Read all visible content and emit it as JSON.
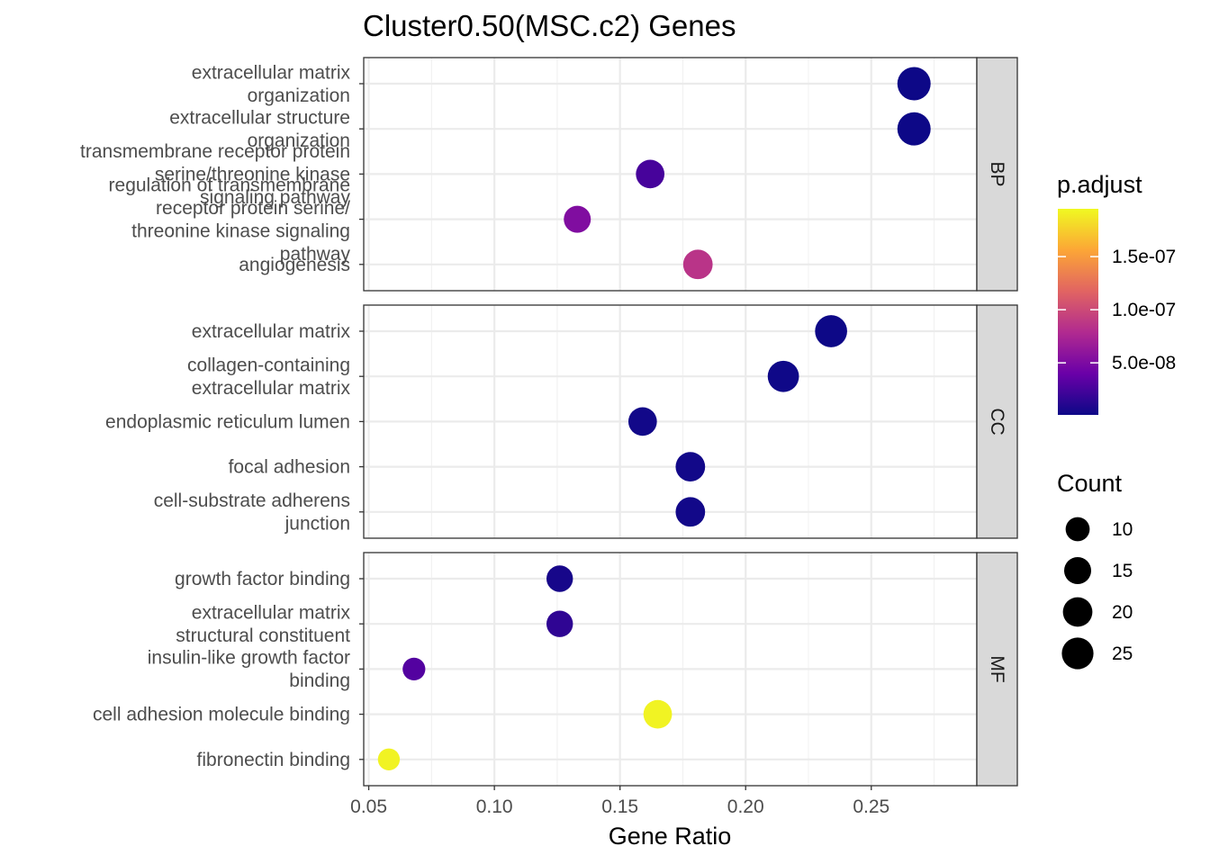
{
  "chart_data": {
    "type": "scatter",
    "title": "Cluster0.50(MSC.c2) Genes",
    "xlabel": "Gene Ratio",
    "xlim": [
      0.048,
      0.292
    ],
    "x_ticks": [
      0.05,
      0.1,
      0.15,
      0.2,
      0.25
    ],
    "x_tick_labels": [
      "0.05",
      "0.10",
      "0.15",
      "0.20",
      "0.25"
    ],
    "grid": true,
    "legend_position": "right",
    "color_legend": {
      "title": "p.adjust",
      "min": 1e-09,
      "max": 1.95e-07,
      "ticks": [
        5e-08,
        1e-07,
        1.5e-07
      ],
      "tick_labels": [
        "5.0e-08",
        "1.0e-07",
        "1.5e-07"
      ],
      "colors": [
        "#0d0887",
        "#6a00a8",
        "#b12a90",
        "#e16462",
        "#fca636",
        "#f0f921"
      ]
    },
    "size_legend": {
      "title": "Count",
      "values": [
        10,
        15,
        20,
        25
      ],
      "labels": [
        "10",
        "15",
        "20",
        "25"
      ]
    },
    "panels": [
      {
        "name": "BP",
        "terms": [
          {
            "label": [
              "extracellular matrix",
              "organization"
            ],
            "x": 0.267,
            "count": 29,
            "p_adjust": 1e-09
          },
          {
            "label": [
              "extracellular structure",
              "organization"
            ],
            "x": 0.267,
            "count": 29,
            "p_adjust": 1e-09
          },
          {
            "label": [
              "transmembrane receptor protein",
              "serine/threonine kinase",
              "signaling pathway"
            ],
            "x": 0.162,
            "count": 18,
            "p_adjust": 2.5e-08
          },
          {
            "label": [
              "regulation of transmembrane",
              "receptor protein serine/",
              "threonine kinase signaling",
              "pathway"
            ],
            "x": 0.133,
            "count": 15,
            "p_adjust": 5.2e-08
          },
          {
            "label": [
              "angiogenesis"
            ],
            "x": 0.181,
            "count": 20,
            "p_adjust": 8.5e-08
          }
        ]
      },
      {
        "name": "CC",
        "terms": [
          {
            "label": [
              "extracellular matrix"
            ],
            "x": 0.234,
            "count": 26,
            "p_adjust": 1e-09
          },
          {
            "label": [
              "collagen-containing",
              "extracellular matrix"
            ],
            "x": 0.215,
            "count": 24,
            "p_adjust": 2e-09
          },
          {
            "label": [
              "endoplasmic reticulum lumen"
            ],
            "x": 0.159,
            "count": 18,
            "p_adjust": 3e-09
          },
          {
            "label": [
              "focal adhesion"
            ],
            "x": 0.178,
            "count": 20,
            "p_adjust": 3e-09
          },
          {
            "label": [
              "cell-substrate adherens",
              "junction"
            ],
            "x": 0.178,
            "count": 20,
            "p_adjust": 3e-09
          }
        ]
      },
      {
        "name": "MF",
        "terms": [
          {
            "label": [
              "growth factor binding"
            ],
            "x": 0.126,
            "count": 14,
            "p_adjust": 5e-09
          },
          {
            "label": [
              "extracellular matrix",
              "structural constituent"
            ],
            "x": 0.126,
            "count": 14,
            "p_adjust": 1.5e-08
          },
          {
            "label": [
              "insulin-like growth factor",
              "binding"
            ],
            "x": 0.068,
            "count": 8,
            "p_adjust": 3e-08
          },
          {
            "label": [
              "cell adhesion molecule binding"
            ],
            "x": 0.165,
            "count": 18,
            "p_adjust": 1.92e-07
          },
          {
            "label": [
              "fibronectin binding"
            ],
            "x": 0.058,
            "count": 7,
            "p_adjust": 1.92e-07
          }
        ]
      }
    ]
  }
}
